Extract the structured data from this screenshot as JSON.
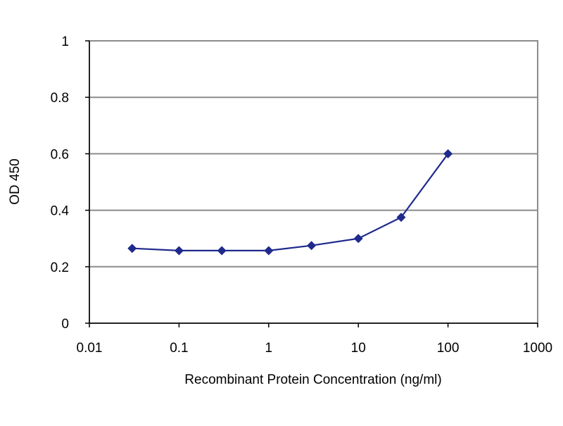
{
  "chart_data": {
    "type": "line",
    "title": "",
    "xlabel": "Recombinant Protein Concentration (ng/ml)",
    "ylabel": "OD 450",
    "x_scale": "log",
    "xlim": [
      0.01,
      1000
    ],
    "ylim": [
      0,
      1
    ],
    "x_ticks": [
      0.01,
      0.1,
      1,
      10,
      100,
      1000
    ],
    "x_tick_labels": [
      "0.01",
      "0.1",
      "1",
      "10",
      "100",
      "1000"
    ],
    "y_ticks": [
      0,
      0.2,
      0.4,
      0.6,
      0.8,
      1
    ],
    "y_tick_labels": [
      "0",
      "0.2",
      "0.4",
      "0.6",
      "0.8",
      "1"
    ],
    "grid": true,
    "legend": "none",
    "series": [
      {
        "color": "#1f2a8c",
        "marker": "diamond",
        "x": [
          0.03,
          0.1,
          0.3,
          1,
          3,
          10,
          30,
          100
        ],
        "y": [
          0.265,
          0.257,
          0.257,
          0.257,
          0.275,
          0.3,
          0.375,
          0.6
        ]
      }
    ]
  }
}
